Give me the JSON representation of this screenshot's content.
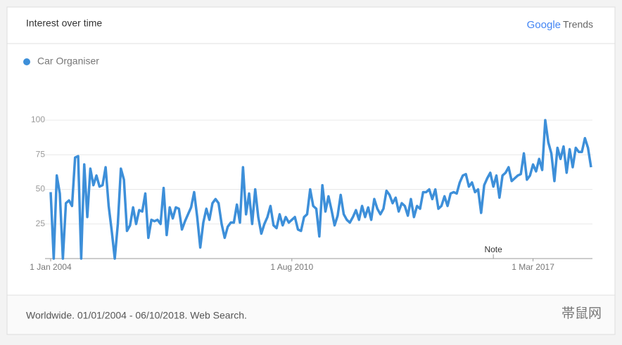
{
  "chart_data": {
    "type": "line",
    "title": "Interest over time",
    "brand": "Google",
    "product": "Trends",
    "footer": "Worldwide. 01/01/2004 - 06/10/2018. Web Search.",
    "watermark": "帯鼠网",
    "annotation": "Note",
    "grid": true,
    "ylim": [
      0,
      100
    ],
    "yticks": [
      25,
      50,
      75,
      100
    ],
    "label_positions": [
      0,
      79,
      158
    ],
    "x_labels": [
      "1 Jan 2004",
      "1 Aug 2010",
      "1 Mar 2017"
    ],
    "note_index": 145,
    "series": [
      {
        "name": "Car Organiser",
        "color": "#3d8fd9",
        "values": [
          48,
          0,
          60,
          47,
          0,
          40,
          42,
          38,
          73,
          74,
          0,
          68,
          30,
          65,
          53,
          60,
          52,
          53,
          66,
          38,
          20,
          0,
          25,
          65,
          57,
          20,
          24,
          37,
          25,
          35,
          34,
          47,
          15,
          28,
          27,
          28,
          25,
          51,
          17,
          37,
          29,
          37,
          36,
          21,
          27,
          32,
          37,
          48,
          30,
          8,
          26,
          36,
          28,
          40,
          43,
          40,
          25,
          15,
          23,
          26,
          26,
          39,
          26,
          66,
          32,
          47,
          25,
          50,
          30,
          18,
          25,
          30,
          38,
          24,
          22,
          32,
          24,
          30,
          26,
          28,
          30,
          21,
          20,
          30,
          32,
          50,
          38,
          36,
          16,
          53,
          34,
          45,
          35,
          24,
          31,
          46,
          32,
          28,
          26,
          30,
          35,
          28,
          38,
          30,
          37,
          28,
          43,
          36,
          32,
          36,
          49,
          46,
          40,
          44,
          34,
          40,
          38,
          31,
          43,
          30,
          38,
          36,
          48,
          48,
          50,
          43,
          50,
          36,
          38,
          45,
          38,
          47,
          48,
          47,
          55,
          60,
          61,
          52,
          55,
          48,
          50,
          33,
          53,
          58,
          62,
          52,
          60,
          44,
          60,
          62,
          66,
          56,
          58,
          60,
          61,
          76,
          57,
          60,
          68,
          63,
          72,
          64,
          100,
          84,
          76,
          56,
          80,
          72,
          81,
          62,
          79,
          66,
          80,
          77,
          77,
          87,
          80,
          66
        ]
      }
    ]
  }
}
